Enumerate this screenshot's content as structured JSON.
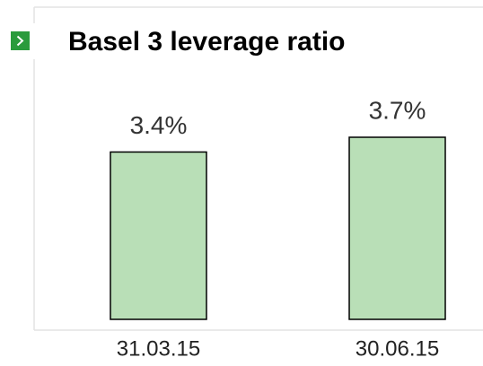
{
  "chart_data": {
    "type": "bar",
    "title": "Basel 3 leverage ratio",
    "categories": [
      "31.03.15",
      "30.06.15"
    ],
    "values": [
      3.4,
      3.7
    ],
    "value_labels": [
      "3.4%",
      "3.7%"
    ],
    "color": "#b9dfb7"
  }
}
